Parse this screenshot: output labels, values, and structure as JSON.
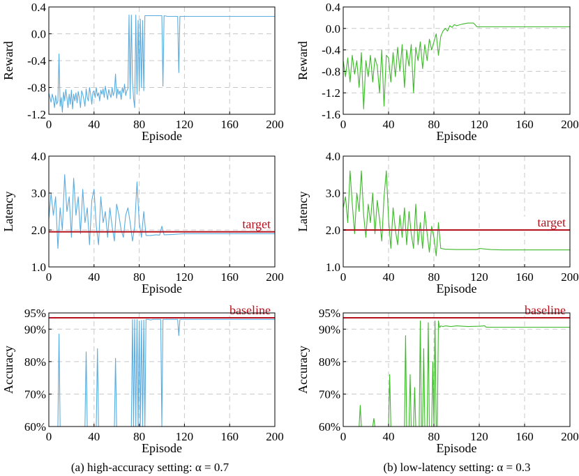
{
  "captions": [
    "(a) high-accuracy setting: α = 0.7",
    "(b) low-latency setting: α = 0.3"
  ],
  "colors": {
    "a": "#5aacdf",
    "b": "#3cb829",
    "ref": "#b5111c",
    "grid": "#c8c8c8"
  },
  "chart_data": [
    {
      "type": "line",
      "panel": "a-reward",
      "xlabel": "Episode",
      "ylabel": "Reward",
      "xlim": [
        0,
        200
      ],
      "ylim": [
        -1.2,
        0.4
      ],
      "xticks": [
        0,
        40,
        80,
        120,
        160,
        200
      ],
      "xtick_labels": [
        "0",
        "40",
        "80",
        "120",
        "160",
        "200"
      ],
      "yticks": [
        -1.2,
        -0.8,
        -0.4,
        0.0,
        0.4
      ],
      "ytick_labels": [
        "-1.2",
        "-0.8",
        "-0.4",
        "0.0",
        "0.4"
      ],
      "series": [
        {
          "name": "reward",
          "x": [
            0,
            1,
            2,
            3,
            4,
            5,
            6,
            7,
            8,
            9,
            10,
            11,
            12,
            13,
            14,
            15,
            16,
            17,
            18,
            19,
            20,
            21,
            22,
            23,
            24,
            25,
            26,
            27,
            28,
            29,
            30,
            31,
            32,
            33,
            34,
            35,
            36,
            37,
            38,
            39,
            40,
            41,
            42,
            43,
            44,
            45,
            46,
            47,
            48,
            49,
            50,
            51,
            52,
            53,
            54,
            55,
            56,
            57,
            58,
            59,
            60,
            61,
            62,
            63,
            64,
            65,
            66,
            67,
            68,
            69,
            70,
            71,
            72,
            73,
            74,
            75,
            76,
            77,
            78,
            79,
            80,
            81,
            82,
            83,
            84,
            85,
            90,
            95,
            100,
            101,
            102,
            105,
            110,
            114,
            115,
            116,
            120,
            140,
            160,
            180,
            200
          ],
          "y": [
            -0.88,
            -0.95,
            -1.02,
            -0.9,
            -0.97,
            -1.1,
            -0.92,
            -1.05,
            -1.0,
            -0.3,
            -1.08,
            -0.95,
            -1.17,
            -0.87,
            -1.0,
            -0.83,
            -0.95,
            -1.1,
            -0.9,
            -1.05,
            -0.84,
            -1.12,
            -0.9,
            -1.0,
            -0.88,
            -1.03,
            -0.86,
            -0.95,
            -1.1,
            -0.85,
            -0.9,
            -0.98,
            -1.08,
            -0.82,
            -0.95,
            -1.0,
            -0.8,
            -0.9,
            -1.05,
            -0.87,
            -0.85,
            -0.95,
            -0.8,
            -0.93,
            -0.88,
            -1.0,
            -0.84,
            -0.9,
            -0.82,
            -0.95,
            -0.78,
            -0.88,
            -0.98,
            -0.83,
            -0.9,
            -0.95,
            -0.8,
            -0.92,
            -0.86,
            -0.6,
            -0.96,
            -0.82,
            -0.9,
            -0.85,
            -0.98,
            -0.8,
            -0.88,
            -0.75,
            -0.92,
            -0.85,
            -0.82,
            0.28,
            -0.97,
            0.28,
            -0.7,
            -0.97,
            -1.1,
            0.28,
            -0.9,
            0.2,
            -0.85,
            0.22,
            -0.8,
            0.2,
            -0.85,
            0.27,
            0.27,
            0.27,
            0.27,
            -0.78,
            0.27,
            0.26,
            0.26,
            0.26,
            -0.58,
            0.26,
            0.26,
            0.26,
            0.26,
            0.26,
            0.26
          ]
        }
      ]
    },
    {
      "type": "line",
      "panel": "b-reward",
      "xlabel": "Episode",
      "ylabel": "Reward",
      "xlim": [
        0,
        200
      ],
      "ylim": [
        -1.6,
        0.4
      ],
      "xticks": [
        0,
        40,
        80,
        120,
        160,
        200
      ],
      "xtick_labels": [
        "0",
        "40",
        "80",
        "120",
        "160",
        "200"
      ],
      "yticks": [
        -1.6,
        -1.2,
        -0.8,
        -0.4,
        0.0,
        0.4
      ],
      "ytick_labels": [
        "-1.6",
        "-1.2",
        "-0.8",
        "-0.4",
        "0.0",
        "0.4"
      ],
      "series": [
        {
          "name": "reward",
          "x": [
            0,
            2,
            4,
            6,
            8,
            10,
            12,
            14,
            16,
            18,
            20,
            22,
            24,
            26,
            28,
            30,
            32,
            34,
            36,
            38,
            40,
            42,
            44,
            46,
            48,
            50,
            52,
            54,
            56,
            58,
            60,
            62,
            64,
            66,
            68,
            70,
            72,
            74,
            76,
            78,
            80,
            82,
            84,
            86,
            88,
            90,
            92,
            94,
            96,
            98,
            100,
            105,
            110,
            115,
            118,
            120,
            140,
            160,
            180,
            200
          ],
          "y": [
            -0.6,
            -0.9,
            -0.55,
            -1.0,
            -0.5,
            -0.85,
            -0.6,
            -1.1,
            -0.45,
            -1.5,
            -0.6,
            -0.9,
            -0.5,
            -1.0,
            -0.55,
            -0.7,
            -1.2,
            -0.4,
            -1.45,
            -0.5,
            -0.55,
            -1.0,
            -0.45,
            -0.9,
            -0.35,
            -0.8,
            -0.3,
            -1.1,
            -0.4,
            -0.7,
            -0.3,
            -1.2,
            -0.35,
            -0.6,
            -0.25,
            -0.75,
            -0.3,
            -0.6,
            -0.2,
            -0.4,
            -0.25,
            -0.1,
            -0.5,
            -0.15,
            -0.05,
            0.0,
            -0.05,
            0.05,
            0.02,
            0.07,
            0.05,
            0.08,
            0.1,
            0.1,
            0.03,
            0.03,
            0.03,
            0.03,
            0.03,
            0.03
          ]
        }
      ]
    },
    {
      "type": "line",
      "panel": "a-latency",
      "xlabel": "Episode",
      "ylabel": "Latency",
      "xlim": [
        0,
        200
      ],
      "ylim": [
        1.0,
        4.0
      ],
      "xticks": [
        0,
        40,
        80,
        120,
        160,
        200
      ],
      "xtick_labels": [
        "0",
        "40",
        "80",
        "120",
        "160",
        "200"
      ],
      "yticks": [
        1.0,
        2.0,
        3.0,
        4.0
      ],
      "ytick_labels": [
        "1.0",
        "2.0",
        "3.0",
        "4.0"
      ],
      "reference": {
        "value": 1.95,
        "label": "target"
      },
      "series": [
        {
          "name": "latency",
          "x": [
            0,
            2,
            4,
            6,
            8,
            10,
            12,
            14,
            16,
            18,
            20,
            22,
            24,
            26,
            28,
            30,
            32,
            34,
            36,
            38,
            40,
            42,
            44,
            46,
            48,
            50,
            52,
            54,
            56,
            58,
            60,
            62,
            64,
            66,
            68,
            70,
            72,
            74,
            76,
            78,
            80,
            82,
            84,
            86,
            90,
            95,
            98,
            100,
            102,
            110,
            120,
            140,
            160,
            180,
            200
          ],
          "y": [
            2.3,
            3.0,
            2.4,
            2.9,
            1.5,
            2.6,
            2.0,
            3.5,
            2.5,
            2.9,
            1.8,
            3.4,
            2.4,
            2.9,
            1.9,
            3.1,
            2.2,
            2.6,
            1.6,
            2.8,
            3.1,
            2.1,
            1.6,
            2.9,
            2.2,
            2.5,
            1.8,
            2.6,
            2.1,
            1.7,
            2.7,
            2.4,
            2.0,
            1.8,
            2.4,
            2.6,
            2.2,
            1.7,
            2.1,
            3.3,
            2.2,
            1.8,
            2.5,
            1.85,
            1.85,
            1.87,
            1.86,
            2.1,
            1.87,
            1.88,
            1.9,
            1.9,
            1.9,
            1.9,
            1.9
          ]
        }
      ]
    },
    {
      "type": "line",
      "panel": "b-latency",
      "xlabel": "Episode",
      "ylabel": "Latency",
      "xlim": [
        0,
        200
      ],
      "ylim": [
        1.0,
        4.0
      ],
      "xticks": [
        0,
        40,
        80,
        120,
        160,
        200
      ],
      "xtick_labels": [
        "0",
        "40",
        "80",
        "120",
        "160",
        "200"
      ],
      "yticks": [
        1.0,
        2.0,
        3.0,
        4.0
      ],
      "ytick_labels": [
        "1.0",
        "2.0",
        "3.0",
        "4.0"
      ],
      "reference": {
        "value": 2.0,
        "label": "target"
      },
      "series": [
        {
          "name": "latency",
          "x": [
            0,
            2,
            4,
            6,
            8,
            10,
            12,
            14,
            16,
            18,
            20,
            22,
            24,
            26,
            28,
            30,
            32,
            34,
            36,
            38,
            40,
            42,
            44,
            46,
            48,
            50,
            52,
            54,
            56,
            58,
            60,
            62,
            64,
            66,
            68,
            70,
            72,
            74,
            76,
            78,
            80,
            82,
            84,
            86,
            90,
            100,
            110,
            118,
            120,
            130,
            140,
            160,
            180,
            200
          ],
          "y": [
            2.6,
            2.9,
            2.2,
            3.6,
            2.7,
            1.9,
            3.0,
            2.5,
            3.6,
            2.4,
            1.8,
            2.7,
            2.2,
            3.0,
            1.9,
            2.8,
            2.3,
            1.7,
            2.9,
            3.6,
            2.3,
            1.5,
            2.6,
            2.0,
            1.6,
            2.4,
            1.8,
            2.6,
            1.6,
            2.5,
            1.9,
            1.5,
            2.7,
            1.6,
            2.2,
            1.5,
            2.5,
            1.9,
            1.4,
            2.1,
            1.8,
            1.3,
            2.2,
            1.5,
            1.48,
            1.47,
            1.47,
            1.47,
            1.5,
            1.47,
            1.46,
            1.46,
            1.46,
            1.46
          ]
        }
      ]
    },
    {
      "type": "line",
      "panel": "a-accuracy",
      "xlabel": "Episode",
      "ylabel": "Accuracy",
      "xlim": [
        0,
        200
      ],
      "ylim": [
        60,
        95
      ],
      "xticks": [
        0,
        40,
        80,
        120,
        160,
        200
      ],
      "xtick_labels": [
        "0",
        "40",
        "80",
        "120",
        "160",
        "200"
      ],
      "yticks": [
        60,
        70,
        80,
        90,
        95
      ],
      "ytick_labels": [
        "60%",
        "70%",
        "80%",
        "90%",
        "95%"
      ],
      "reference": {
        "value": 93.5,
        "label": "baseline"
      },
      "series": [
        {
          "name": "accuracy",
          "x": [
            0,
            8,
            9,
            10,
            11,
            32,
            33,
            34,
            42,
            43,
            44,
            58,
            59,
            60,
            73,
            74,
            75,
            76,
            77,
            78,
            79,
            80,
            81,
            82,
            83,
            84,
            85,
            86,
            88,
            90,
            92,
            94,
            96,
            98,
            99,
            100,
            101,
            102,
            105,
            110,
            114,
            115,
            116,
            120,
            140,
            160,
            180,
            200
          ],
          "y": [
            60,
            60,
            88.5,
            60,
            60,
            60,
            83,
            60,
            60,
            84,
            60,
            60,
            81,
            60,
            60,
            93,
            60,
            93,
            60,
            93,
            60,
            92.5,
            60,
            92.7,
            60,
            92.8,
            60,
            93,
            93,
            92.8,
            93,
            93,
            93,
            93,
            93,
            60,
            93,
            93,
            93,
            93,
            93,
            88,
            93,
            93,
            93,
            93,
            93,
            93
          ]
        }
      ]
    },
    {
      "type": "line",
      "panel": "b-accuracy",
      "xlabel": "Episode",
      "ylabel": "Accuracy",
      "xlim": [
        0,
        200
      ],
      "ylim": [
        60,
        95
      ],
      "xticks": [
        0,
        40,
        80,
        120,
        160,
        200
      ],
      "xtick_labels": [
        "0",
        "40",
        "80",
        "120",
        "160",
        "200"
      ],
      "yticks": [
        60,
        70,
        80,
        90,
        95
      ],
      "ytick_labels": [
        "60%",
        "70%",
        "80%",
        "90%",
        "95%"
      ],
      "reference": {
        "value": 93.5,
        "label": "baseline"
      },
      "series": [
        {
          "name": "accuracy",
          "x": [
            0,
            14,
            15,
            16,
            26,
            27,
            28,
            40,
            41,
            42,
            54,
            55,
            56,
            58,
            59,
            60,
            62,
            63,
            64,
            67,
            68,
            69,
            70,
            71,
            72,
            74,
            75,
            76,
            78,
            79,
            80,
            81,
            82,
            83,
            84,
            85,
            86,
            88,
            90,
            95,
            100,
            110,
            120,
            125,
            126,
            130,
            140,
            160,
            180,
            200
          ],
          "y": [
            60,
            60,
            66.5,
            60,
            60,
            62.5,
            60,
            60,
            76,
            60,
            60,
            88,
            60,
            60,
            76,
            60,
            60,
            72,
            60,
            60,
            92.5,
            60,
            60,
            84,
            60,
            60,
            92,
            60,
            60,
            80,
            60,
            92.5,
            60,
            60,
            92.5,
            90.5,
            91,
            90.8,
            91,
            90.8,
            91,
            90.8,
            90.9,
            91,
            90.6,
            90.6,
            90.6,
            90.6,
            90.6,
            90.6
          ]
        }
      ]
    }
  ]
}
